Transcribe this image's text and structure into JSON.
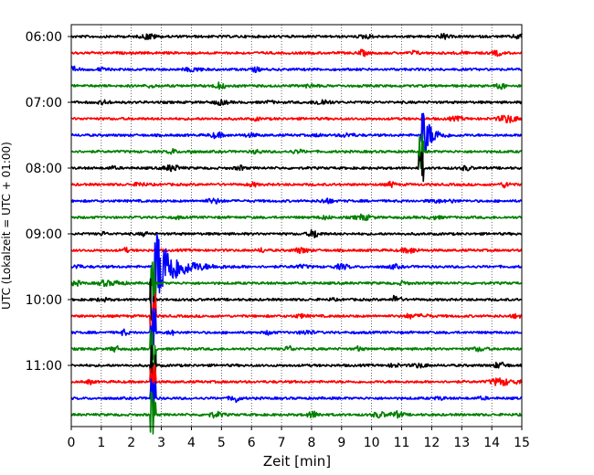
{
  "chart_data": {
    "type": "line",
    "title": "",
    "xlabel": "Zeit  [min]",
    "ylabel": "UTC (Lokalzeit = UTC + 01:00)",
    "xlim": [
      0,
      15
    ],
    "x_ticks": [
      "0",
      "1",
      "2",
      "3",
      "4",
      "5",
      "6",
      "7",
      "8",
      "9",
      "10",
      "11",
      "12",
      "13",
      "14",
      "15"
    ],
    "y_ticks": [
      "06:00",
      "07:00",
      "08:00",
      "09:00",
      "10:00",
      "11:00"
    ],
    "grid": {
      "vertical": true,
      "style": "dotted"
    },
    "line_interval_minutes": 15,
    "trace_colors": [
      "#000000",
      "#ff0000",
      "#0000ff",
      "#008000"
    ],
    "trace_start_times": [
      "06:00",
      "06:15",
      "06:30",
      "06:45",
      "07:00",
      "07:15",
      "07:30",
      "07:45",
      "08:00",
      "08:15",
      "08:30",
      "08:45",
      "09:00",
      "09:15",
      "09:30",
      "09:45",
      "10:00",
      "10:15",
      "10:30",
      "10:45",
      "11:00",
      "11:15",
      "11:30",
      "11:45"
    ],
    "events": [
      {
        "name": "",
        "start_trace": "07:30",
        "x_min": 11.65,
        "peak_amplitude": 4.5,
        "decay": 0.25,
        "extends_traces": 2
      },
      {
        "name": "",
        "start_trace": "09:30",
        "x_min": 2.72,
        "peak_amplitude": 6.5,
        "decay": 0.55,
        "extends_traces": 9
      }
    ]
  }
}
